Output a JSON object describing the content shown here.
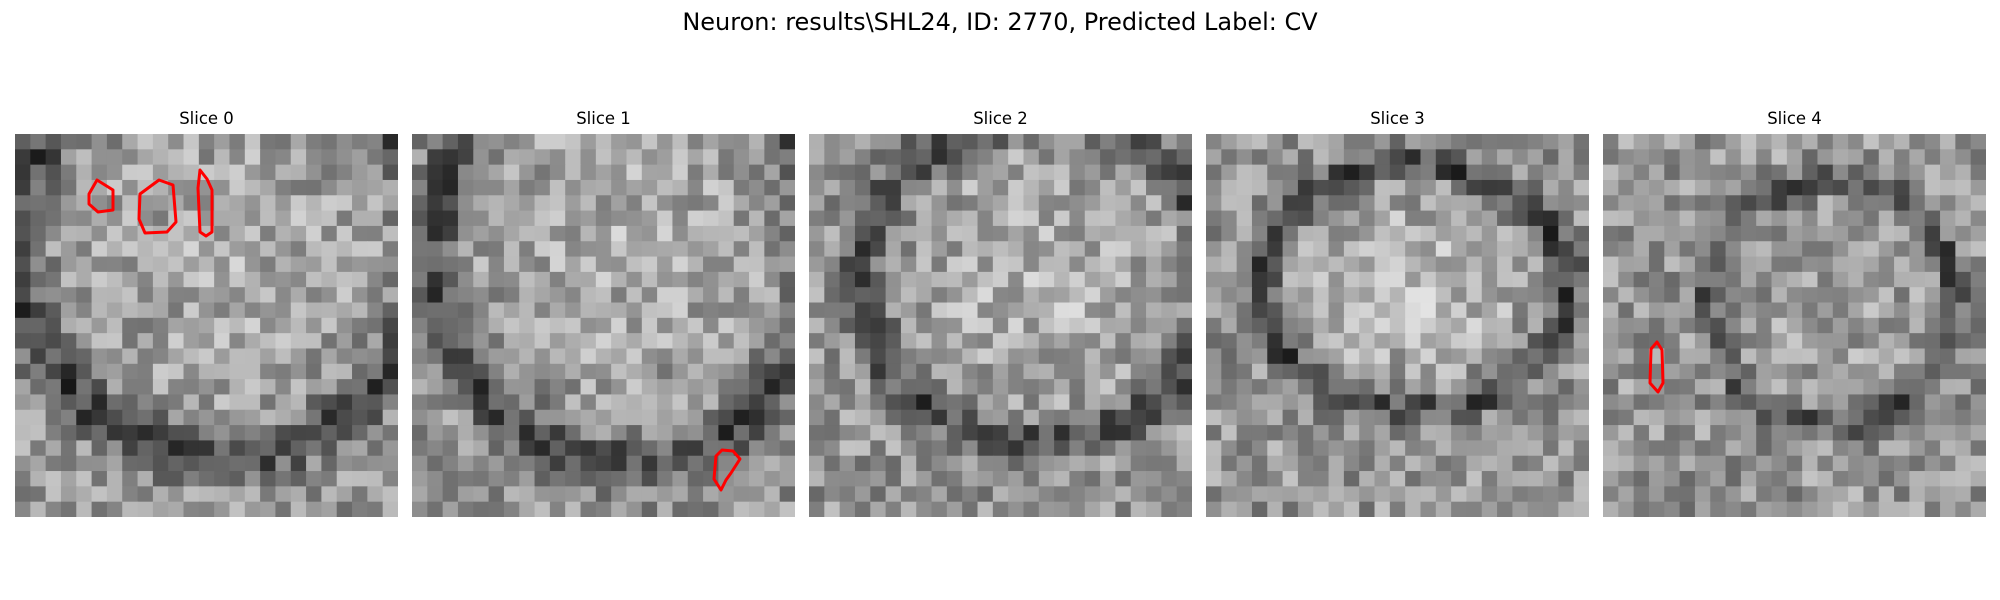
{
  "figure": {
    "title": "Neuron: results\\SHL24, ID: 2770, Predicted Label: CV"
  },
  "panels": [
    {
      "title": "Slice 0",
      "contours": 3
    },
    {
      "title": "Slice 1",
      "contours": 1
    },
    {
      "title": "Slice 2",
      "contours": 0
    },
    {
      "title": "Slice 3",
      "contours": 0
    },
    {
      "title": "Slice 4",
      "contours": 1
    }
  ],
  "colors": {
    "contour": "#ff0000",
    "colormap": "gray"
  }
}
